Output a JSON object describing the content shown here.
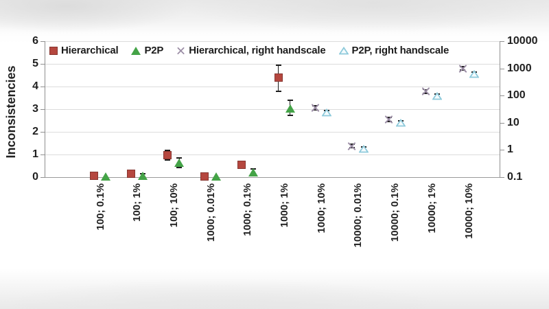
{
  "chart_data": {
    "type": "scatter",
    "title": "",
    "ylabel_left": "Inconsistencies",
    "left_axis": {
      "ticks": [
        0,
        1,
        2,
        3,
        4,
        5,
        6
      ],
      "ylim": [
        0,
        6
      ],
      "grid": true
    },
    "right_axis": {
      "ticks": [
        "0.1",
        "1",
        "10",
        "100",
        "1000",
        "10000"
      ],
      "scale": "log",
      "ylim": [
        0.1,
        10000
      ]
    },
    "legend_position": "top-inside",
    "x_tick_rotation": -90,
    "categories": [
      "100; 0.1%",
      "100; 1%",
      "100; 10%",
      "1000; 0.01%",
      "1000; 0.1%",
      "1000; 1%",
      "1000; 10%",
      "10000; 0.01%",
      "10000; 0.1%",
      "10000; 1%",
      "10000; 10%"
    ],
    "series": [
      {
        "name": "Hierarchical",
        "axis": "left",
        "marker": "square",
        "color": "#b5473f",
        "values": [
          0.05,
          0.15,
          0.97,
          0.03,
          0.55,
          4.4,
          null,
          null,
          null,
          null,
          null
        ],
        "err_lo": [
          null,
          null,
          0.76,
          null,
          0.42,
          3.79,
          null,
          null,
          null,
          null,
          null
        ],
        "err_hi": [
          null,
          null,
          1.18,
          null,
          0.68,
          4.94,
          null,
          null,
          null,
          null,
          null
        ]
      },
      {
        "name": "P2P",
        "axis": "left",
        "marker": "triangle",
        "color": "#44a347",
        "values": [
          0.02,
          0.07,
          0.64,
          0.02,
          0.22,
          3.03,
          null,
          null,
          null,
          null,
          null
        ],
        "err_lo": [
          null,
          0.0,
          0.42,
          null,
          0.1,
          2.73,
          null,
          null,
          null,
          null,
          null
        ],
        "err_hi": [
          null,
          0.16,
          0.86,
          null,
          0.36,
          3.4,
          null,
          null,
          null,
          null,
          null
        ]
      },
      {
        "name": "Hierarchical, right handscale",
        "axis": "right",
        "marker": "x",
        "color": "#9c8ea6",
        "values": [
          null,
          null,
          null,
          null,
          null,
          null,
          35,
          1.4,
          13,
          140,
          1000
        ],
        "err_lo": [
          null,
          null,
          null,
          null,
          null,
          null,
          29,
          1.2,
          11,
          120,
          860
        ],
        "err_hi": [
          null,
          null,
          null,
          null,
          null,
          null,
          42,
          1.65,
          15.5,
          165,
          1170
        ]
      },
      {
        "name": "P2P, right handscale",
        "axis": "right",
        "marker": "triangle-open",
        "color": "#8ecadb",
        "values": [
          null,
          null,
          null,
          null,
          null,
          null,
          23,
          1.1,
          10,
          95,
          620
        ],
        "err_lo": [
          null,
          null,
          null,
          null,
          null,
          null,
          19,
          0.92,
          8.5,
          80,
          520
        ],
        "err_hi": [
          null,
          null,
          null,
          null,
          null,
          null,
          28,
          1.32,
          11.8,
          112,
          740
        ]
      }
    ]
  }
}
